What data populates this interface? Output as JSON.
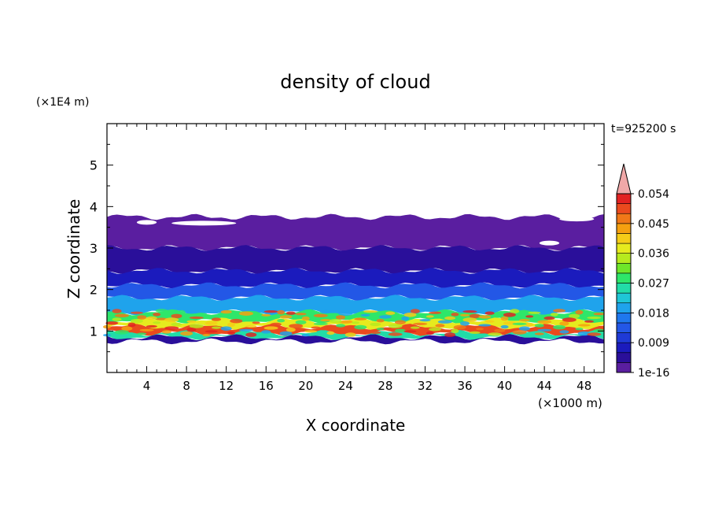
{
  "chart_data": {
    "type": "heatmap",
    "title": "density of cloud",
    "xlabel": "X coordinate",
    "ylabel": "Z coordinate",
    "x_unit": "(×1000 m)",
    "y_unit": "(×1E4 m)",
    "time_label": "t=925200 s",
    "xlim": [
      0,
      50
    ],
    "ylim": [
      0,
      6
    ],
    "x_ticks": [
      4,
      8,
      12,
      16,
      20,
      24,
      28,
      32,
      36,
      40,
      44,
      48
    ],
    "y_ticks": [
      1,
      2,
      3,
      4,
      5
    ],
    "colorbar": {
      "labels": [
        "1e-16",
        "0.009",
        "0.018",
        "0.027",
        "0.036",
        "0.045",
        "0.054"
      ],
      "colors": [
        "#5a1ea0",
        "#2a0f9a",
        "#1b1bbd",
        "#1f3ad6",
        "#2357e6",
        "#1f78ee",
        "#1fa3ec",
        "#1fc6d6",
        "#22dca8",
        "#2ee66a",
        "#6ee62a",
        "#b6ea1e",
        "#e6ea1e",
        "#f5cc18",
        "#f5a010",
        "#f07818",
        "#ea4a1e",
        "#e22222",
        "#f0a8a8"
      ]
    },
    "layers": [
      {
        "z_top": 3.75,
        "z_bottom": 3.0,
        "level": 0
      },
      {
        "z_top": 3.0,
        "z_bottom": 2.45,
        "level": 1
      },
      {
        "z_top": 2.45,
        "z_bottom": 2.1,
        "level": 2
      },
      {
        "z_top": 2.1,
        "z_bottom": 1.8,
        "level": 4
      },
      {
        "z_top": 1.8,
        "z_bottom": 1.45,
        "level": 6
      },
      {
        "z_top": 1.45,
        "z_bottom": 1.25,
        "level": 9
      },
      {
        "z_top": 1.25,
        "z_bottom": 1.1,
        "level": 12
      },
      {
        "z_top": 1.1,
        "z_bottom": 0.95,
        "level": 16
      },
      {
        "z_top": 0.95,
        "z_bottom": 0.85,
        "level": 8
      },
      {
        "z_top": 0.85,
        "z_bottom": 0.75,
        "level": 1
      }
    ]
  }
}
